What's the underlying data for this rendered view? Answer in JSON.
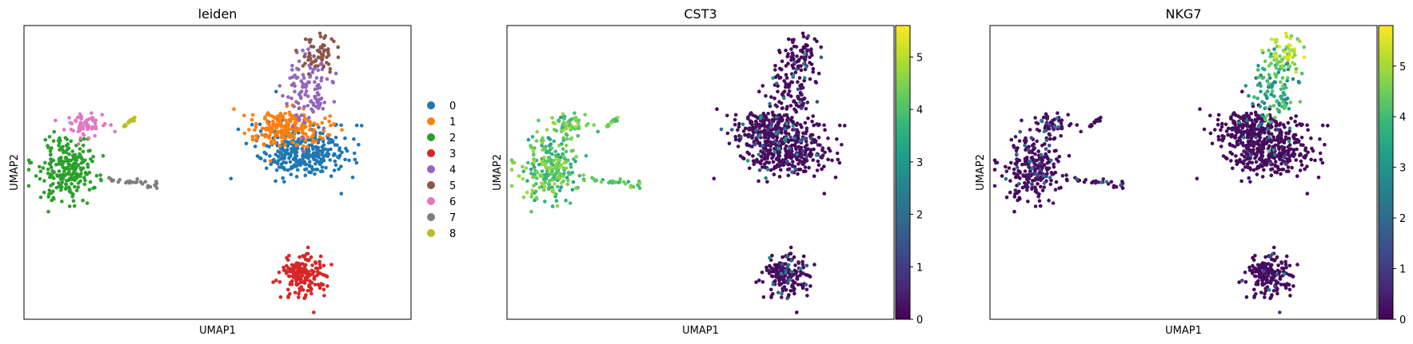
{
  "chart_data": [
    {
      "type": "scatter",
      "title": "leiden",
      "xlabel": "UMAP1",
      "ylabel": "UMAP2",
      "xticks": [],
      "yticks": [],
      "legend": {
        "placement": "right",
        "entries": [
          {
            "label": "0",
            "color": "#1f77b4"
          },
          {
            "label": "1",
            "color": "#ff7f0e"
          },
          {
            "label": "2",
            "color": "#2ca02c"
          },
          {
            "label": "3",
            "color": "#d62728"
          },
          {
            "label": "4",
            "color": "#9467bd"
          },
          {
            "label": "5",
            "color": "#8c564b"
          },
          {
            "label": "6",
            "color": "#e377c2"
          },
          {
            "label": "7",
            "color": "#7f7f7f"
          },
          {
            "label": "8",
            "color": "#bcbd22"
          }
        ]
      }
    },
    {
      "type": "scatter",
      "title": "CST3",
      "xlabel": "UMAP1",
      "ylabel": "UMAP2",
      "colorbar": {
        "colormap": "viridis",
        "range": [
          0,
          5.6
        ],
        "ticks": [
          "0",
          "1",
          "2",
          "3",
          "4",
          "5"
        ]
      }
    },
    {
      "type": "scatter",
      "title": "NKG7",
      "xlabel": "UMAP1",
      "ylabel": "UMAP2",
      "colorbar": {
        "colormap": "viridis",
        "range": [
          0,
          5.8
        ],
        "ticks": [
          "0",
          "1",
          "2",
          "3",
          "4",
          "5"
        ]
      }
    }
  ]
}
